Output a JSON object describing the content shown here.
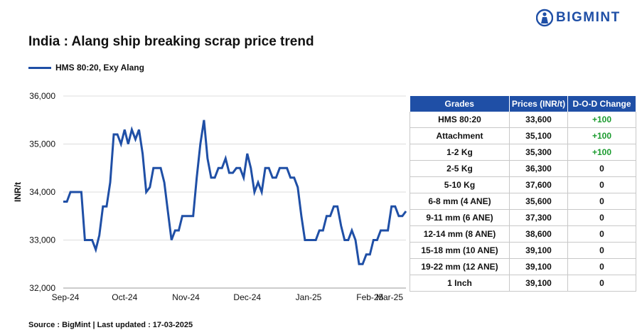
{
  "brand": {
    "name": "BIGMINT",
    "icon": "person-icon",
    "color": "#1f4fa6"
  },
  "title": "India : Alang ship breaking scrap price trend",
  "source": "Source : BigMint | Last updated : 17-03-2025",
  "chart_data": {
    "type": "line",
    "title": "India : Alang ship breaking scrap price trend",
    "ylabel": "INR/t",
    "xlabel": "",
    "ylim": [
      32000,
      36000
    ],
    "yticks": [
      32000,
      33000,
      34000,
      35000,
      36000
    ],
    "ytick_labels": [
      "32,000",
      "33,000",
      "34,000",
      "35,000",
      "36,000"
    ],
    "xticks": [
      0,
      17,
      34,
      51,
      68,
      85,
      100
    ],
    "xtick_labels": [
      "Sep-24",
      "Oct-24",
      "Nov-24",
      "Dec-24",
      "Jan-25",
      "Feb-25",
      "Mar-25"
    ],
    "grid": "horizontal",
    "legend_position": "top-left",
    "series": [
      {
        "name": "HMS 80:20, Exy Alang",
        "color": "#1f4fa6",
        "values": [
          33800,
          33800,
          34000,
          34000,
          34000,
          34000,
          33000,
          33000,
          33000,
          32800,
          33100,
          33700,
          33700,
          34200,
          35200,
          35200,
          35000,
          35300,
          35000,
          35300,
          35100,
          35300,
          34800,
          34000,
          34100,
          34500,
          34500,
          34500,
          34200,
          33600,
          33000,
          33200,
          33200,
          33500,
          33500,
          33500,
          33500,
          34300,
          35000,
          35500,
          34700,
          34300,
          34300,
          34500,
          34500,
          34700,
          34400,
          34400,
          34500,
          34500,
          34300,
          34800,
          34500,
          34000,
          34200,
          34000,
          34500,
          34500,
          34300,
          34300,
          34500,
          34500,
          34500,
          34300,
          34300,
          34100,
          33500,
          33000,
          33000,
          33000,
          33000,
          33200,
          33200,
          33500,
          33500,
          33700,
          33700,
          33300,
          33000,
          33000,
          33200,
          33000,
          32500,
          32500,
          32700,
          32700,
          33000,
          33000,
          33200,
          33200,
          33200,
          33700,
          33700,
          33500,
          33500,
          33600
        ]
      }
    ]
  },
  "table": {
    "headers": [
      "Grades",
      "Prices (INR/t)",
      "D-O-D Change"
    ],
    "rows": [
      {
        "grade": "HMS 80:20",
        "price": "33,600",
        "change": "+100"
      },
      {
        "grade": "Attachment",
        "price": "35,100",
        "change": "+100"
      },
      {
        "grade": "1-2 Kg",
        "price": "35,300",
        "change": "+100"
      },
      {
        "grade": "2-5 Kg",
        "price": "36,300",
        "change": "0"
      },
      {
        "grade": "5-10 Kg",
        "price": "37,600",
        "change": "0"
      },
      {
        "grade": "6-8 mm (4 ANE)",
        "price": "35,600",
        "change": "0"
      },
      {
        "grade": "9-11 mm (6 ANE)",
        "price": "37,300",
        "change": "0"
      },
      {
        "grade": "12-14 mm (8 ANE)",
        "price": "38,600",
        "change": "0"
      },
      {
        "grade": "15-18 mm (10 ANE)",
        "price": "39,100",
        "change": "0"
      },
      {
        "grade": "19-22 mm (12 ANE)",
        "price": "39,100",
        "change": "0"
      },
      {
        "grade": "1 Inch",
        "price": "39,100",
        "change": "0"
      }
    ]
  }
}
